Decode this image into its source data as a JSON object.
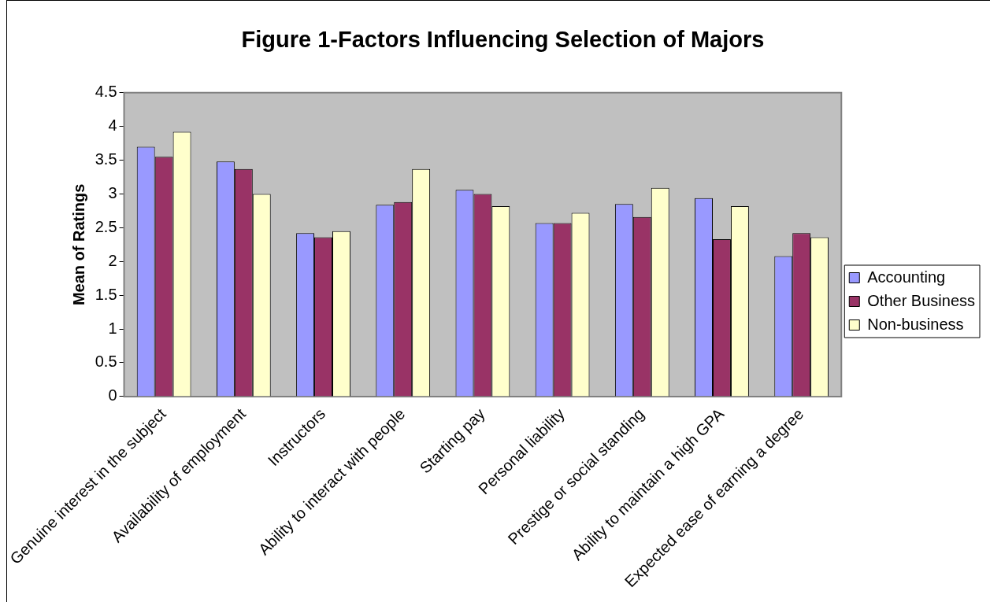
{
  "chart_data": {
    "type": "bar",
    "title": "Figure 1-Factors Influencing Selection of Majors",
    "ylabel": "Mean of Ratings",
    "categories": [
      "Genuine interest in the subject",
      "Availability of employment",
      "Instructors",
      "Ability to interact with people",
      "Starting pay",
      "Personal liability",
      "Prestige or social standing",
      "Ability to maintain a high GPA",
      "Expected ease of earning a degree"
    ],
    "series": [
      {
        "name": "Accounting",
        "color": "#9999ff",
        "values": [
          3.7,
          3.48,
          2.42,
          2.84,
          3.06,
          2.57,
          2.85,
          2.94,
          2.08
        ]
      },
      {
        "name": "Other Business",
        "color": "#993366",
        "values": [
          3.55,
          3.37,
          2.36,
          2.88,
          3.0,
          2.57,
          2.66,
          2.33,
          2.42
        ]
      },
      {
        "name": "Non-business",
        "color": "#ffffcc",
        "values": [
          3.92,
          3.0,
          2.45,
          3.37,
          2.82,
          2.72,
          3.09,
          2.82,
          2.36
        ]
      }
    ],
    "ylim": [
      0,
      4.5
    ],
    "yticks": [
      0,
      0.5,
      1,
      1.5,
      2,
      2.5,
      3,
      3.5,
      4,
      4.5
    ],
    "grid": false,
    "legend": "right"
  }
}
